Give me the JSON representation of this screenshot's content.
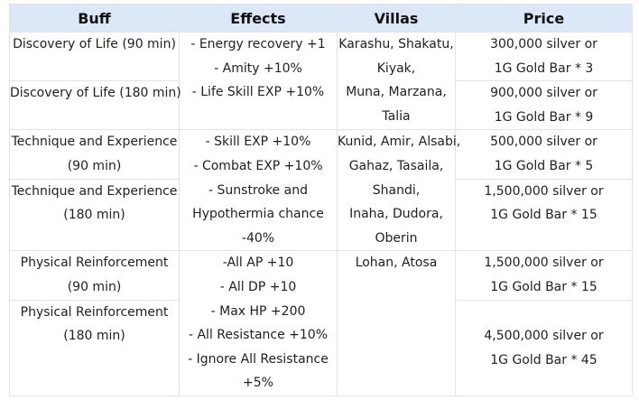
{
  "headers": {
    "buff": "Buff",
    "effects": "Effects",
    "villas": "Villas",
    "price": "Price"
  },
  "groups": [
    {
      "effects": [
        "- Energy recovery +1",
        "- Amity +10%",
        "- Life Skill EXP +10%"
      ],
      "villas": [
        "Karashu, Shakatu,",
        "Kiyak,",
        "Muna, Marzana,",
        "Talia"
      ],
      "rows": [
        {
          "buff": [
            "Discovery of Life (90 min)"
          ],
          "price": [
            "300,000 silver or",
            "1G Gold Bar * 3"
          ]
        },
        {
          "buff": [
            "Discovery of Life (180 min)"
          ],
          "price": [
            "900,000 silver or",
            "1G Gold Bar * 9"
          ]
        }
      ]
    },
    {
      "effects": [
        "- Skill EXP +10%",
        "- Combat EXP +10%",
        "- Sunstroke and",
        "Hypothermia chance",
        "-40%"
      ],
      "villas": [
        "Kunid, Amir, Alsabi,",
        "Gahaz, Tasaila,",
        "Shandi,",
        "Inaha, Dudora,",
        "Oberin"
      ],
      "rows": [
        {
          "buff": [
            "Technique and Experience",
            "(90 min)"
          ],
          "price": [
            "500,000 silver or",
            "1G Gold Bar * 5"
          ]
        },
        {
          "buff": [
            "Technique and Experience",
            "(180 min)"
          ],
          "price": [
            "1,500,000 silver or",
            "1G Gold Bar * 15"
          ]
        }
      ]
    },
    {
      "effects": [
        "-All AP +10",
        "- All DP +10",
        "- Max HP +200",
        "- All Resistance +10%",
        "- Ignore All Resistance",
        "+5%"
      ],
      "villas": [
        "Lohan, Atosa"
      ],
      "rows": [
        {
          "buff": [
            "Physical Reinforcement",
            "(90 min)"
          ],
          "price": [
            "1,500,000 silver or",
            "1G Gold Bar * 15"
          ]
        },
        {
          "buff": [
            "Physical Reinforcement",
            "(180 min)"
          ],
          "price": [
            "",
            "4,500,000 silver or",
            "1G Gold Bar * 45"
          ]
        }
      ]
    }
  ]
}
